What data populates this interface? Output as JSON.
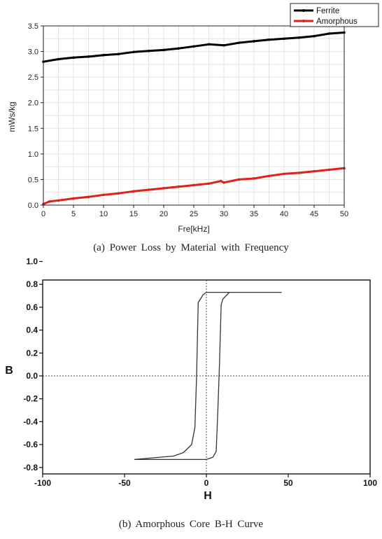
{
  "chart_data": [
    {
      "type": "line",
      "xlabel": "Fre[kHz]",
      "ylabel": "mWs/kg",
      "caption": "(a) Power Loss by Material with Frequency",
      "xlim": [
        0,
        50
      ],
      "ylim": [
        0,
        3.5
      ],
      "xticks": [
        "0",
        "5",
        "10",
        "15",
        "20",
        "25",
        "30",
        "35",
        "40",
        "45",
        "50"
      ],
      "yticks": [
        "0.0",
        "0.5",
        "1.0",
        "1.5",
        "2.0",
        "2.5",
        "3.0",
        "3.5"
      ],
      "grid": true,
      "legend_position": "top-right",
      "series": [
        {
          "name": "Ferrite",
          "color": "#000000",
          "x": [
            0,
            2.5,
            5,
            7.5,
            10,
            12.5,
            15,
            17.5,
            20,
            22.5,
            25,
            27.5,
            30,
            32.5,
            35,
            37.5,
            40,
            42.5,
            45,
            47.5,
            50
          ],
          "values": [
            2.8,
            2.85,
            2.88,
            2.9,
            2.93,
            2.95,
            2.99,
            3.01,
            3.03,
            3.06,
            3.1,
            3.14,
            3.12,
            3.17,
            3.2,
            3.23,
            3.25,
            3.27,
            3.3,
            3.35,
            3.37
          ]
        },
        {
          "name": "Amorphous",
          "color": "#e0201b",
          "x": [
            0,
            1,
            2.5,
            5,
            7.5,
            10,
            12.5,
            15,
            17.5,
            20,
            22.5,
            25,
            27.5,
            29.5,
            30,
            32.5,
            35,
            37.5,
            40,
            42.5,
            45,
            47.5,
            50
          ],
          "values": [
            0.02,
            0.07,
            0.09,
            0.13,
            0.16,
            0.2,
            0.23,
            0.27,
            0.3,
            0.33,
            0.36,
            0.39,
            0.42,
            0.47,
            0.44,
            0.5,
            0.52,
            0.57,
            0.61,
            0.63,
            0.66,
            0.69,
            0.72
          ]
        }
      ]
    },
    {
      "type": "line",
      "xlabel": "H",
      "ylabel": "B",
      "caption": "(b) Amorphous Core B-H Curve",
      "xlim": [
        -100,
        100
      ],
      "ylim": [
        -0.93,
        1.0
      ],
      "xticks": [
        "-100",
        "-50",
        "0",
        "50",
        "100"
      ],
      "yticks": [
        "1.0",
        "0.8",
        "0.6",
        "0.4",
        "0.2",
        "0.0",
        "-0.2",
        "-0.4",
        "-0.6",
        "-0.8"
      ],
      "zero_lines": true,
      "series": [
        {
          "color": "#333333",
          "x": [
            -44,
            -20,
            -14,
            -9,
            -7,
            -6,
            -5,
            -2,
            0,
            46
          ],
          "values": [
            -0.73,
            -0.7,
            -0.67,
            -0.6,
            -0.45,
            0.0,
            0.64,
            0.71,
            0.73,
            0.73
          ]
        },
        {
          "color": "#333333",
          "x": [
            -44,
            0,
            4,
            6,
            7,
            8,
            9,
            10,
            14
          ],
          "values": [
            -0.73,
            -0.73,
            -0.71,
            -0.66,
            -0.3,
            0.1,
            0.62,
            0.67,
            0.73
          ]
        }
      ]
    }
  ]
}
